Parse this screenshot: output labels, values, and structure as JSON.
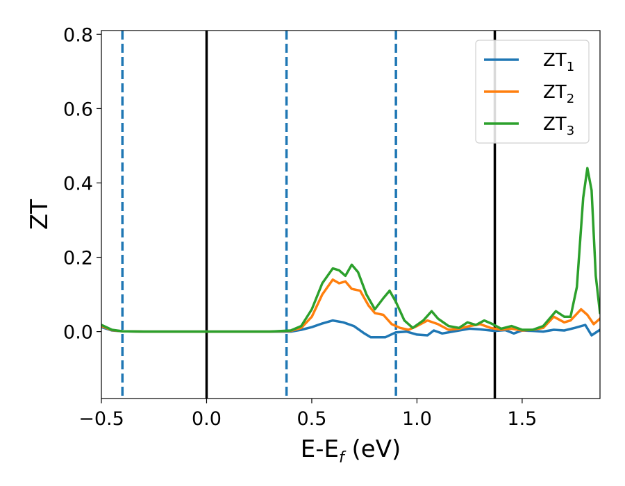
{
  "chart_data": {
    "type": "line",
    "xlabel_main": "E-E",
    "xlabel_sub": "f",
    "xlabel_unit": " (eV)",
    "ylabel": "ZT",
    "xlim": [
      -0.5,
      1.87
    ],
    "ylim": [
      -0.18,
      0.81
    ],
    "xticks": [
      -0.5,
      0.0,
      0.5,
      1.0,
      1.5
    ],
    "xtick_labels": [
      "−0.5",
      "0.0",
      "0.5",
      "1.0",
      "1.5"
    ],
    "yticks": [
      0.0,
      0.2,
      0.4,
      0.6,
      0.8
    ],
    "ytick_labels": [
      "0.0",
      "0.2",
      "0.4",
      "0.6",
      "0.8"
    ],
    "legend_position": "top-right",
    "grid": false,
    "vlines": [
      {
        "x": -0.4,
        "style": "dashed",
        "color": "#1f77b4"
      },
      {
        "x": 0.0,
        "style": "solid",
        "color": "#000000"
      },
      {
        "x": 0.38,
        "style": "dashed",
        "color": "#1f77b4"
      },
      {
        "x": 0.9,
        "style": "dashed",
        "color": "#1f77b4"
      },
      {
        "x": 1.37,
        "style": "solid",
        "color": "#000000"
      }
    ],
    "series": [
      {
        "name": "ZT",
        "name_sub": "1",
        "color": "#1f77b4",
        "points": [
          [
            -0.5,
            0.012
          ],
          [
            -0.45,
            0.003
          ],
          [
            -0.4,
            0.001
          ],
          [
            -0.3,
            0.0
          ],
          [
            0.0,
            0.0
          ],
          [
            0.3,
            0.0
          ],
          [
            0.4,
            0.0
          ],
          [
            0.45,
            0.005
          ],
          [
            0.5,
            0.012
          ],
          [
            0.55,
            0.022
          ],
          [
            0.6,
            0.03
          ],
          [
            0.65,
            0.025
          ],
          [
            0.7,
            0.015
          ],
          [
            0.75,
            -0.005
          ],
          [
            0.78,
            -0.015
          ],
          [
            0.85,
            -0.015
          ],
          [
            0.9,
            -0.002
          ],
          [
            0.95,
            0.0
          ],
          [
            1.0,
            -0.008
          ],
          [
            1.05,
            -0.01
          ],
          [
            1.08,
            0.003
          ],
          [
            1.12,
            -0.005
          ],
          [
            1.2,
            0.003
          ],
          [
            1.25,
            0.008
          ],
          [
            1.3,
            0.006
          ],
          [
            1.37,
            0.002
          ],
          [
            1.42,
            0.004
          ],
          [
            1.46,
            -0.005
          ],
          [
            1.5,
            0.003
          ],
          [
            1.55,
            0.002
          ],
          [
            1.6,
            0.0
          ],
          [
            1.65,
            0.005
          ],
          [
            1.7,
            0.003
          ],
          [
            1.75,
            0.01
          ],
          [
            1.8,
            0.018
          ],
          [
            1.83,
            -0.01
          ],
          [
            1.87,
            0.005
          ]
        ]
      },
      {
        "name": "ZT",
        "name_sub": "2",
        "color": "#ff7f0e",
        "points": [
          [
            -0.5,
            0.015
          ],
          [
            -0.45,
            0.004
          ],
          [
            -0.4,
            0.001
          ],
          [
            -0.3,
            0.0
          ],
          [
            0.0,
            0.0
          ],
          [
            0.3,
            0.0
          ],
          [
            0.4,
            0.002
          ],
          [
            0.45,
            0.01
          ],
          [
            0.5,
            0.04
          ],
          [
            0.55,
            0.1
          ],
          [
            0.6,
            0.14
          ],
          [
            0.63,
            0.13
          ],
          [
            0.66,
            0.135
          ],
          [
            0.69,
            0.115
          ],
          [
            0.73,
            0.11
          ],
          [
            0.77,
            0.07
          ],
          [
            0.8,
            0.05
          ],
          [
            0.84,
            0.045
          ],
          [
            0.88,
            0.02
          ],
          [
            0.92,
            0.01
          ],
          [
            0.96,
            0.005
          ],
          [
            1.0,
            0.015
          ],
          [
            1.05,
            0.03
          ],
          [
            1.1,
            0.02
          ],
          [
            1.15,
            0.005
          ],
          [
            1.2,
            0.008
          ],
          [
            1.25,
            0.015
          ],
          [
            1.3,
            0.02
          ],
          [
            1.35,
            0.01
          ],
          [
            1.4,
            0.005
          ],
          [
            1.45,
            0.008
          ],
          [
            1.5,
            0.003
          ],
          [
            1.55,
            0.005
          ],
          [
            1.6,
            0.01
          ],
          [
            1.65,
            0.04
          ],
          [
            1.7,
            0.025
          ],
          [
            1.73,
            0.03
          ],
          [
            1.78,
            0.06
          ],
          [
            1.81,
            0.045
          ],
          [
            1.84,
            0.02
          ],
          [
            1.87,
            0.035
          ]
        ]
      },
      {
        "name": "ZT",
        "name_sub": "3",
        "color": "#2ca02c",
        "points": [
          [
            -0.5,
            0.018
          ],
          [
            -0.45,
            0.005
          ],
          [
            -0.4,
            0.001
          ],
          [
            -0.3,
            0.0
          ],
          [
            0.0,
            0.0
          ],
          [
            0.3,
            0.0
          ],
          [
            0.4,
            0.003
          ],
          [
            0.45,
            0.015
          ],
          [
            0.5,
            0.06
          ],
          [
            0.55,
            0.13
          ],
          [
            0.6,
            0.17
          ],
          [
            0.63,
            0.165
          ],
          [
            0.66,
            0.15
          ],
          [
            0.69,
            0.18
          ],
          [
            0.72,
            0.16
          ],
          [
            0.76,
            0.1
          ],
          [
            0.8,
            0.06
          ],
          [
            0.84,
            0.09
          ],
          [
            0.87,
            0.11
          ],
          [
            0.9,
            0.08
          ],
          [
            0.94,
            0.03
          ],
          [
            0.98,
            0.01
          ],
          [
            1.03,
            0.03
          ],
          [
            1.07,
            0.055
          ],
          [
            1.1,
            0.035
          ],
          [
            1.15,
            0.015
          ],
          [
            1.2,
            0.01
          ],
          [
            1.24,
            0.025
          ],
          [
            1.28,
            0.018
          ],
          [
            1.32,
            0.03
          ],
          [
            1.36,
            0.02
          ],
          [
            1.4,
            0.008
          ],
          [
            1.45,
            0.015
          ],
          [
            1.5,
            0.005
          ],
          [
            1.55,
            0.005
          ],
          [
            1.6,
            0.015
          ],
          [
            1.66,
            0.055
          ],
          [
            1.7,
            0.04
          ],
          [
            1.73,
            0.04
          ],
          [
            1.76,
            0.12
          ],
          [
            1.79,
            0.36
          ],
          [
            1.81,
            0.44
          ],
          [
            1.83,
            0.38
          ],
          [
            1.85,
            0.15
          ],
          [
            1.87,
            0.05
          ]
        ]
      }
    ]
  }
}
